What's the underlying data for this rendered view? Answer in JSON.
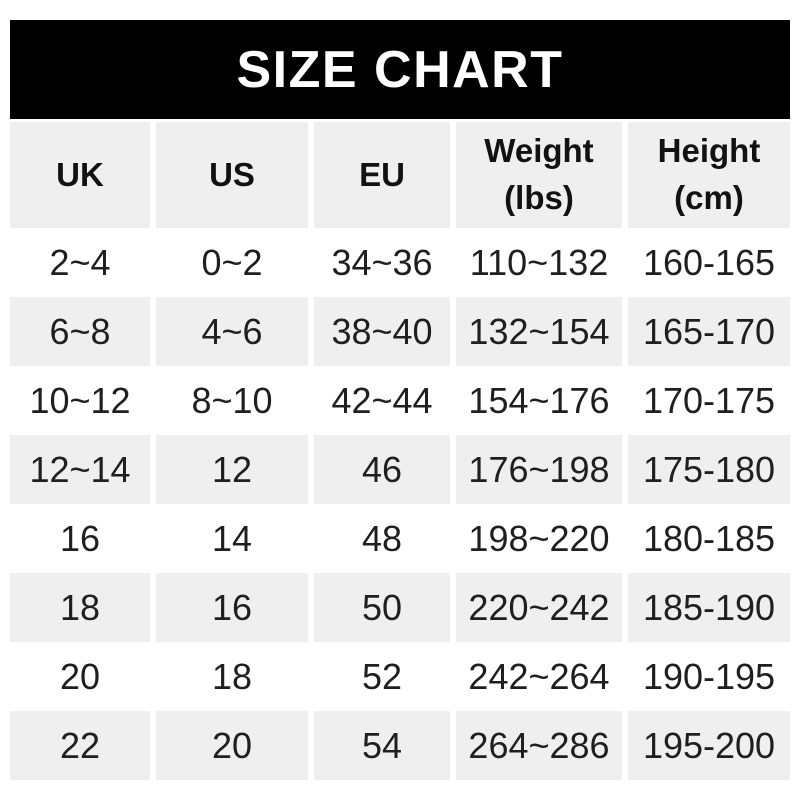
{
  "banner": {
    "title": "SIZE CHART"
  },
  "colors": {
    "banner_bg": "#000000",
    "banner_text": "#ffffff",
    "stripe_bg": "#f0efef",
    "page_bg": "#ffffff",
    "header_text": "#121212",
    "cell_text": "#1f1f1f"
  },
  "chart_data": {
    "type": "table",
    "title": "SIZE CHART",
    "columns": [
      "UK",
      "US",
      "EU",
      "Weight (lbs)",
      "Height (cm)"
    ],
    "column_header_lines": [
      [
        "UK"
      ],
      [
        "US"
      ],
      [
        "EU"
      ],
      [
        "Weight",
        "(lbs)"
      ],
      [
        "Height",
        "(cm)"
      ]
    ],
    "rows": [
      [
        "2~4",
        "0~2",
        "34~36",
        "110~132",
        "160-165"
      ],
      [
        "6~8",
        "4~6",
        "38~40",
        "132~154",
        "165-170"
      ],
      [
        "10~12",
        "8~10",
        "42~44",
        "154~176",
        "170-175"
      ],
      [
        "12~14",
        "12",
        "46",
        "176~198",
        "175-180"
      ],
      [
        "16",
        "14",
        "48",
        "198~220",
        "180-185"
      ],
      [
        "18",
        "16",
        "50",
        "220~242",
        "185-190"
      ],
      [
        "20",
        "18",
        "52",
        "242~264",
        "190-195"
      ],
      [
        "22",
        "20",
        "54",
        "264~286",
        "195-200"
      ]
    ],
    "layout": {
      "stripe_pattern": "header gray, then rows alternate white/gray starting with white",
      "column_gaps": "white vertical gutters between columns",
      "value_separators": "tilde (~) for UK/US/EU/Weight ranges, hyphen (-) for Height ranges"
    }
  }
}
